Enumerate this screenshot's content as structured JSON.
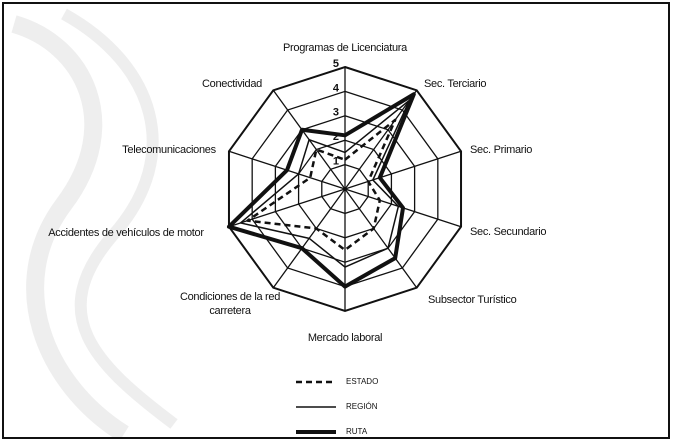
{
  "chart_data": {
    "type": "radar",
    "categories": [
      "Programas de Licenciatura",
      "Sec. Terciario",
      "Sec. Primario",
      "Sec. Secundario",
      "Subsector Turístico",
      "Mercado laboral",
      "Condiciones de la red carretera",
      "Accidentes de vehículos de motor",
      "Telecomunicaciones",
      "Conectividad"
    ],
    "rlim": [
      0,
      5
    ],
    "rticks": [
      1,
      2,
      3,
      4,
      5
    ],
    "series": [
      {
        "name": "ESTADO",
        "color": "#111111",
        "line_style": "dashed",
        "values": [
          1.2,
          3.5,
          1.0,
          1.5,
          2.0,
          2.5,
          2.0,
          4.2,
          1.5,
          2.0
        ]
      },
      {
        "name": "REGIÓN",
        "color": "#111111",
        "line_style": "thin",
        "values": [
          1.5,
          4.5,
          1.2,
          2.3,
          3.0,
          3.2,
          2.5,
          4.5,
          2.0,
          2.5
        ]
      },
      {
        "name": "RUTA",
        "color": "#111111",
        "line_style": "thick",
        "values": [
          2.2,
          4.8,
          1.5,
          2.5,
          3.5,
          4.0,
          3.0,
          5.0,
          2.5,
          3.0
        ]
      }
    ]
  }
}
